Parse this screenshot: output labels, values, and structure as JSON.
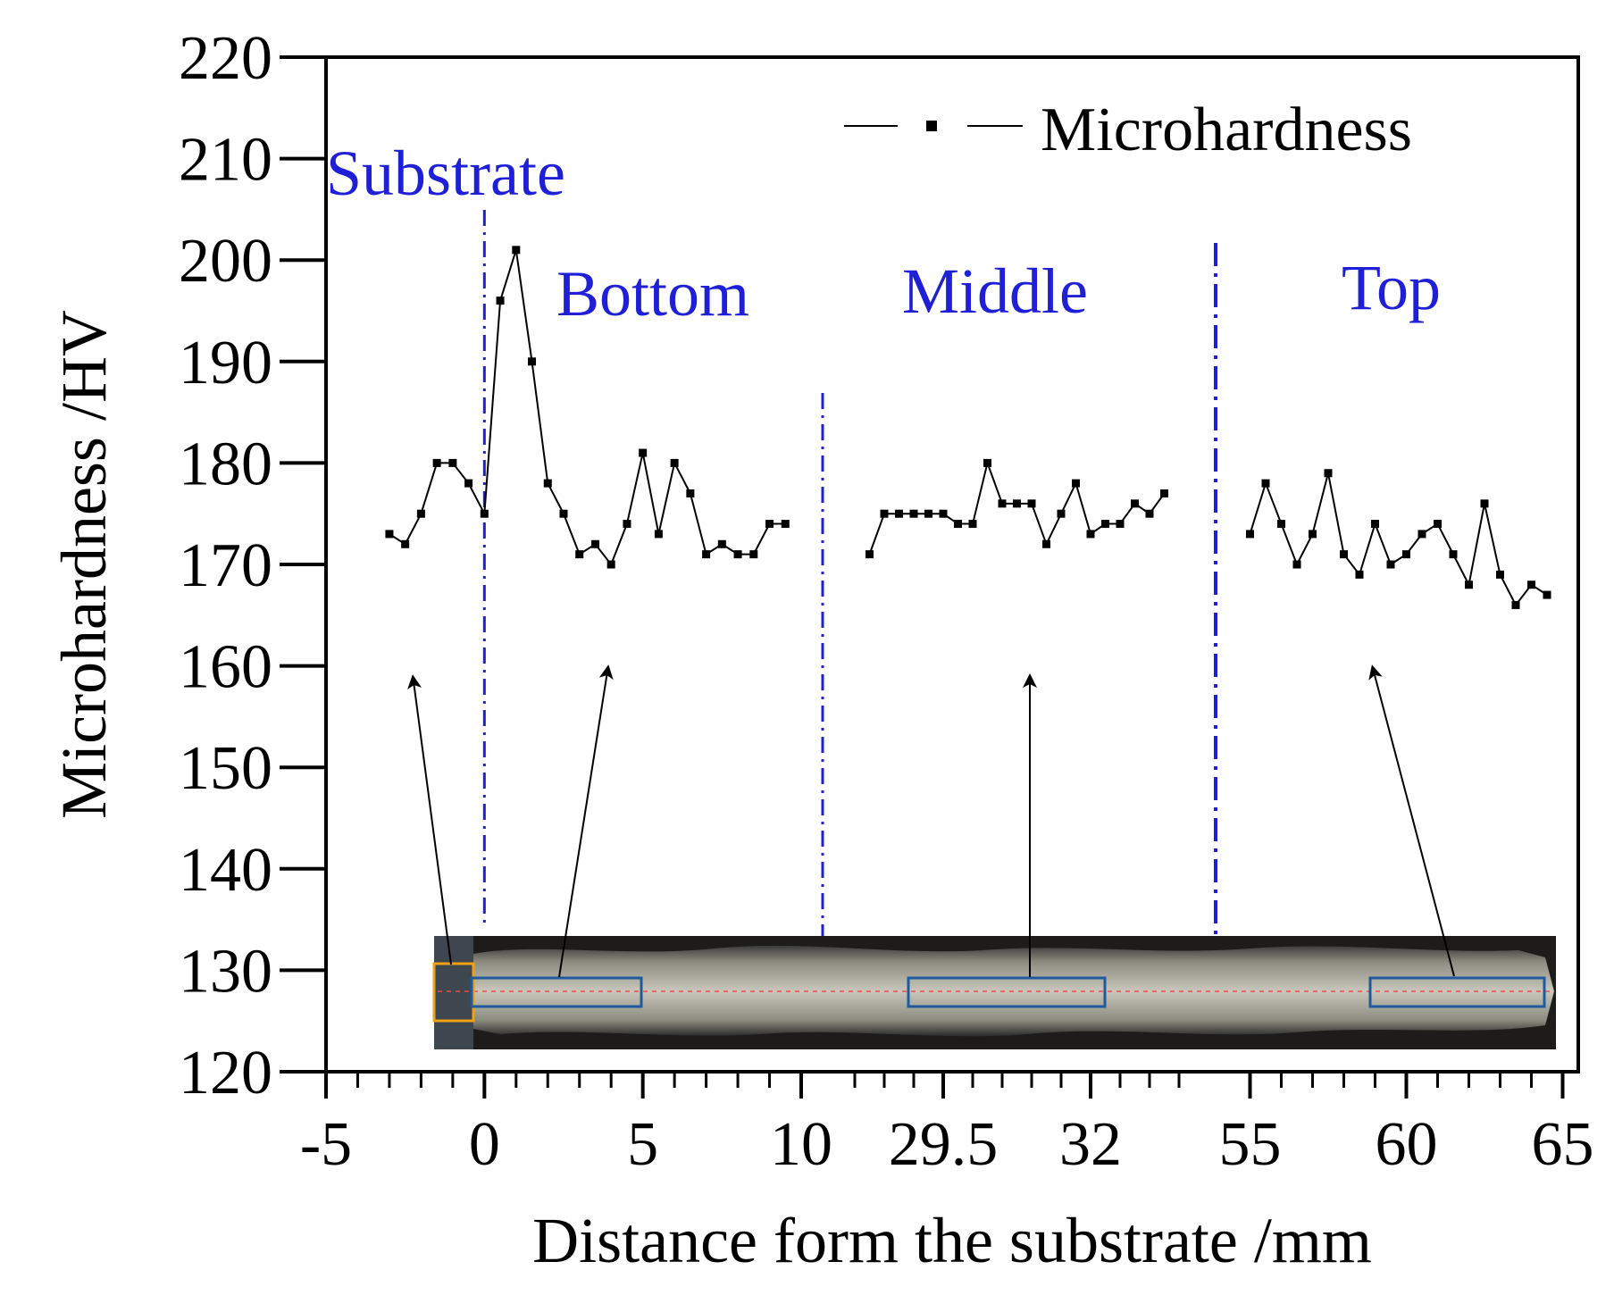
{
  "chart_data": {
    "type": "line",
    "title": "",
    "xlabel": "Distance form the substrate /mm",
    "ylabel": "Microhardness /HV",
    "ylim": [
      120,
      220
    ],
    "yticks": [
      120,
      130,
      140,
      150,
      160,
      170,
      180,
      190,
      200,
      210,
      220
    ],
    "x_axis_note": "broken axis with segments -5..10, 29.5..32, 55..65",
    "x_segments": [
      {
        "label": "Substrate-Bottom",
        "xmin": -5,
        "xmax": 10,
        "ticks": [
          {
            "value": -5,
            "label": "-5"
          },
          {
            "value": 0,
            "label": "0"
          },
          {
            "value": 5,
            "label": "5"
          },
          {
            "value": 10,
            "label": "10"
          }
        ]
      },
      {
        "label": "Middle",
        "xmin": 28.0,
        "xmax": 33.5,
        "ticks": [
          {
            "value": 29.5,
            "label": "29.5"
          },
          {
            "value": 32,
            "label": "32"
          }
        ]
      },
      {
        "label": "Top",
        "xmin": 54.5,
        "xmax": 65.5,
        "ticks": [
          {
            "value": 55,
            "label": "55"
          },
          {
            "value": 60,
            "label": "60"
          },
          {
            "value": 65,
            "label": "65"
          }
        ]
      }
    ],
    "legend": {
      "position": "top-right",
      "entries": [
        "Microhardness"
      ]
    },
    "region_labels": [
      "Substrate",
      "Bottom",
      "Middle",
      "Top"
    ],
    "series": [
      {
        "name": "Microhardness",
        "segments": [
          {
            "segment": 0,
            "points": [
              [
                -3,
                173
              ],
              [
                -2.5,
                172
              ],
              [
                -2,
                175
              ],
              [
                -1.5,
                180
              ],
              [
                -1,
                180
              ],
              [
                -0.5,
                178
              ],
              [
                0,
                175
              ],
              [
                0.5,
                196
              ],
              [
                1,
                201
              ],
              [
                1.5,
                190
              ],
              [
                2,
                178
              ],
              [
                2.5,
                175
              ],
              [
                3,
                171
              ],
              [
                3.5,
                172
              ],
              [
                4,
                170
              ],
              [
                4.5,
                174
              ],
              [
                5,
                181
              ],
              [
                5.5,
                173
              ],
              [
                6,
                180
              ],
              [
                6.5,
                177
              ],
              [
                7,
                171
              ],
              [
                7.5,
                172
              ],
              [
                8,
                171
              ],
              [
                8.5,
                171
              ],
              [
                9,
                174
              ],
              [
                9.5,
                174
              ]
            ]
          },
          {
            "segment": 1,
            "points": [
              [
                28.25,
                171
              ],
              [
                28.5,
                175
              ],
              [
                28.75,
                175
              ],
              [
                29.0,
                175
              ],
              [
                29.25,
                175
              ],
              [
                29.5,
                175
              ],
              [
                29.75,
                174
              ],
              [
                30.0,
                174
              ],
              [
                30.25,
                180
              ],
              [
                30.5,
                176
              ],
              [
                30.75,
                176
              ],
              [
                31.0,
                176
              ],
              [
                31.25,
                172
              ],
              [
                31.5,
                175
              ],
              [
                31.75,
                178
              ],
              [
                32.0,
                173
              ],
              [
                32.25,
                174
              ],
              [
                32.5,
                174
              ],
              [
                32.75,
                176
              ],
              [
                33.0,
                175
              ],
              [
                33.25,
                177
              ]
            ]
          },
          {
            "segment": 2,
            "points": [
              [
                55,
                173
              ],
              [
                55.5,
                178
              ],
              [
                56,
                174
              ],
              [
                56.5,
                170
              ],
              [
                57,
                173
              ],
              [
                57.5,
                179
              ],
              [
                58,
                171
              ],
              [
                58.5,
                169
              ],
              [
                59,
                174
              ],
              [
                59.5,
                170
              ],
              [
                60,
                171
              ],
              [
                60.5,
                173
              ],
              [
                61,
                174
              ],
              [
                61.5,
                171
              ],
              [
                62,
                168
              ],
              [
                62.5,
                176
              ],
              [
                63,
                169
              ],
              [
                63.5,
                166
              ],
              [
                64,
                168
              ],
              [
                64.5,
                167
              ]
            ]
          }
        ]
      }
    ],
    "colors": {
      "series": "#000000",
      "divider": "#1f1fd8",
      "region_text": "#1f1fd8"
    },
    "grid": false
  }
}
